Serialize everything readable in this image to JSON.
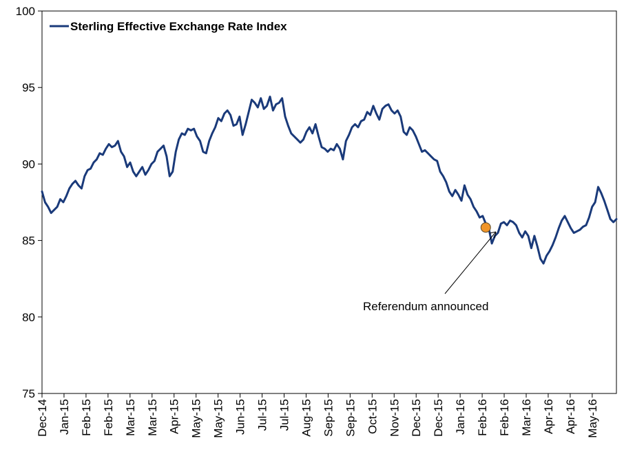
{
  "chart_data": {
    "type": "line",
    "title": "",
    "xlabel": "",
    "ylabel": "",
    "ylim": [
      75,
      100
    ],
    "yticks": [
      75,
      80,
      85,
      90,
      95,
      100
    ],
    "xtick_labels": [
      "Dec-14",
      "Jan-15",
      "Feb-15",
      "Feb-15",
      "Mar-15",
      "Mar-15",
      "Apr-15",
      "May-15",
      "May-15",
      "Jun-15",
      "Jul-15",
      "Jul-15",
      "Aug-15",
      "Sep-15",
      "Sep-15",
      "Oct-15",
      "Nov-15",
      "Dec-15",
      "Dec-15",
      "Jan-16",
      "Feb-16",
      "Feb-16",
      "Mar-16",
      "Apr-16",
      "Apr-16",
      "May-16"
    ],
    "grid": false,
    "legend_position": "top-left",
    "colors": {
      "series": "#1a3a7a",
      "marker": "#f0952a"
    },
    "series": [
      {
        "name": "Sterling Effective Exchange Rate Index",
        "values": [
          88.2,
          87.5,
          87.2,
          86.8,
          87.0,
          87.2,
          87.7,
          87.5,
          87.9,
          88.4,
          88.7,
          88.9,
          88.6,
          88.4,
          89.2,
          89.6,
          89.7,
          90.1,
          90.3,
          90.7,
          90.6,
          91.0,
          91.3,
          91.1,
          91.2,
          91.5,
          90.8,
          90.5,
          89.8,
          90.1,
          89.5,
          89.2,
          89.5,
          89.8,
          89.3,
          89.6,
          90.0,
          90.2,
          90.8,
          91.0,
          91.2,
          90.5,
          89.2,
          89.5,
          90.8,
          91.6,
          92.0,
          91.9,
          92.3,
          92.2,
          92.3,
          91.8,
          91.5,
          90.8,
          90.7,
          91.5,
          92.0,
          92.4,
          93.0,
          92.8,
          93.3,
          93.5,
          93.2,
          92.5,
          92.6,
          93.1,
          91.9,
          92.6,
          93.4,
          94.2,
          94.0,
          93.7,
          94.3,
          93.6,
          93.8,
          94.4,
          93.5,
          93.9,
          94.0,
          94.3,
          93.1,
          92.5,
          92.0,
          91.8,
          91.6,
          91.4,
          91.6,
          92.1,
          92.4,
          92.0,
          92.6,
          91.8,
          91.1,
          91.0,
          90.8,
          91.0,
          90.9,
          91.3,
          91.0,
          90.3,
          91.5,
          91.9,
          92.4,
          92.6,
          92.4,
          92.8,
          92.9,
          93.4,
          93.2,
          93.8,
          93.3,
          92.9,
          93.6,
          93.8,
          93.9,
          93.5,
          93.3,
          93.5,
          93.1,
          92.1,
          91.9,
          92.4,
          92.2,
          91.8,
          91.3,
          90.8,
          90.9,
          90.7,
          90.5,
          90.3,
          90.2,
          89.5,
          89.2,
          88.8,
          88.2,
          87.9,
          88.3,
          88.0,
          87.6,
          88.6,
          88.0,
          87.7,
          87.2,
          86.9,
          86.5,
          86.6,
          86.1,
          85.8,
          84.8,
          85.3,
          85.5,
          86.1,
          86.2,
          86.0,
          86.3,
          86.2,
          86.0,
          85.5,
          85.2,
          85.6,
          85.3,
          84.5,
          85.3,
          84.6,
          83.8,
          83.5,
          84.0,
          84.3,
          84.7,
          85.2,
          85.8,
          86.3,
          86.6,
          86.2,
          85.8,
          85.5,
          85.6,
          85.7,
          85.9,
          86.0,
          86.5,
          87.2,
          87.5,
          88.5,
          88.1,
          87.6,
          87.0,
          86.4,
          86.2,
          86.4
        ]
      }
    ],
    "annotations": [
      {
        "text": "Referendum announced",
        "x_index": 146,
        "y": 85.85
      }
    ]
  }
}
